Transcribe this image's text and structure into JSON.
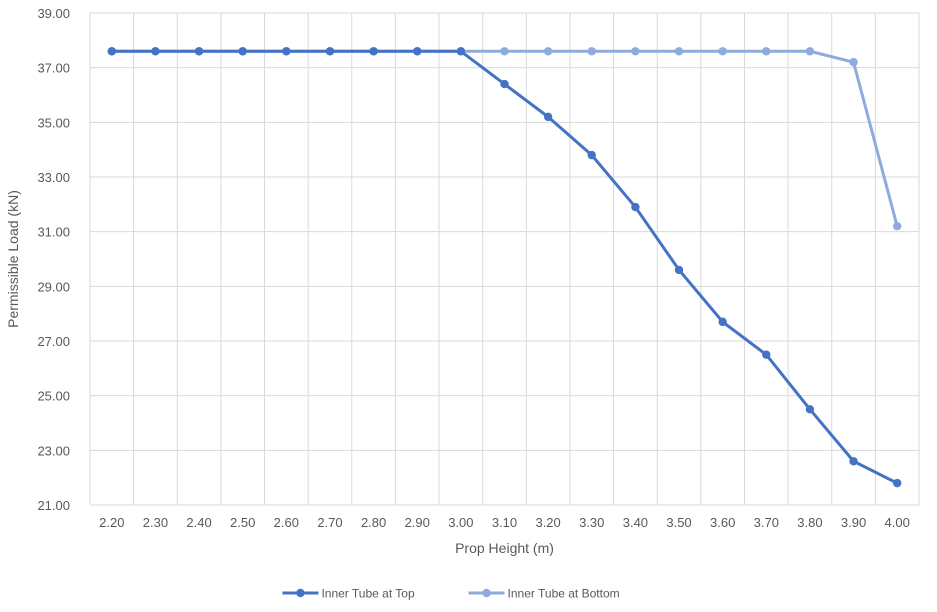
{
  "chart_data": {
    "type": "line",
    "title": "",
    "xlabel": "Prop Height (m)",
    "ylabel": "Permissible Load (kN)",
    "x": [
      "2.20",
      "2.30",
      "2.40",
      "2.50",
      "2.60",
      "2.70",
      "2.80",
      "2.90",
      "3.00",
      "3.10",
      "3.20",
      "3.30",
      "3.40",
      "3.50",
      "3.60",
      "3.70",
      "3.80",
      "3.90",
      "4.00"
    ],
    "ylim": [
      21.0,
      39.0
    ],
    "yticks": [
      "21.00",
      "23.00",
      "25.00",
      "27.00",
      "29.00",
      "31.00",
      "33.00",
      "35.00",
      "37.00",
      "39.00"
    ],
    "grid": true,
    "legend": "bottom",
    "series": [
      {
        "name": "Inner Tube at Top",
        "color": "#4472c4",
        "values": [
          37.6,
          37.6,
          37.6,
          37.6,
          37.6,
          37.6,
          37.6,
          37.6,
          37.6,
          36.4,
          35.2,
          33.8,
          31.9,
          29.6,
          27.7,
          26.5,
          24.5,
          22.6,
          21.8
        ]
      },
      {
        "name": "Inner Tube at Bottom",
        "color": "#8faadc",
        "values": [
          37.6,
          37.6,
          37.6,
          37.6,
          37.6,
          37.6,
          37.6,
          37.6,
          37.6,
          37.6,
          37.6,
          37.6,
          37.6,
          37.6,
          37.6,
          37.6,
          37.6,
          37.2,
          31.2
        ]
      }
    ]
  }
}
